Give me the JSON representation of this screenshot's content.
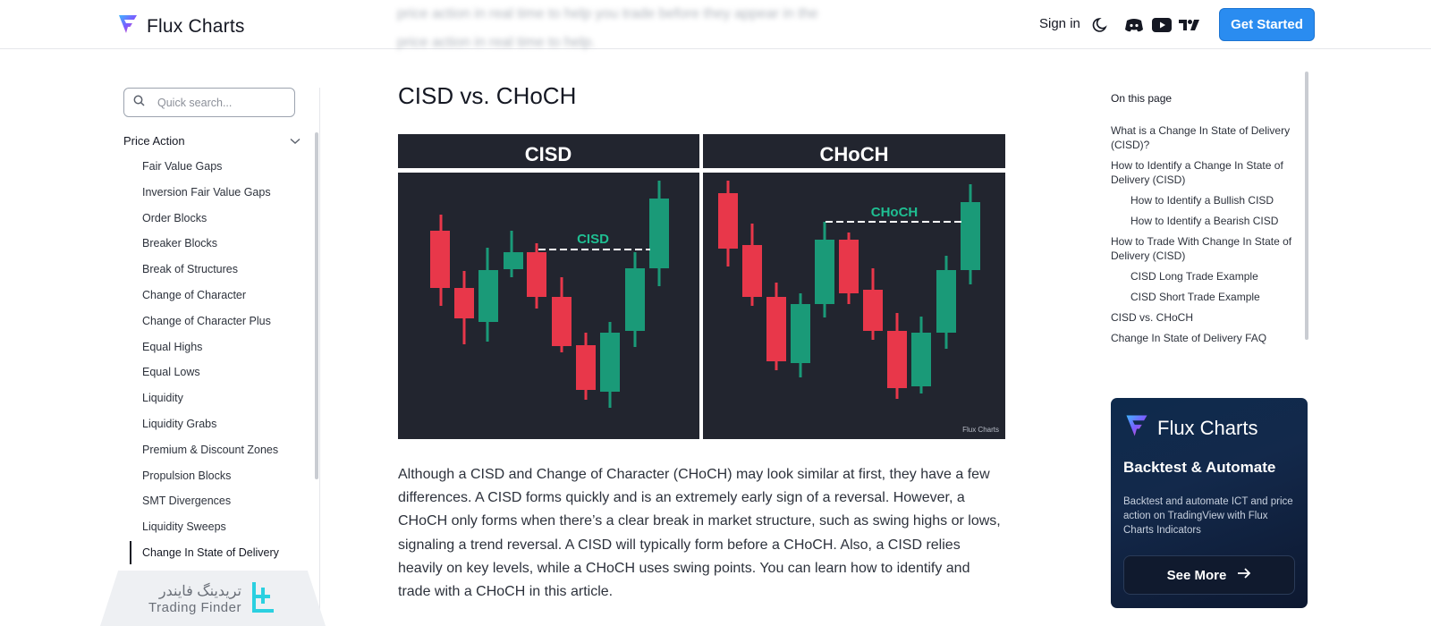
{
  "header": {
    "brand": "Flux Charts",
    "blurred_text_line1": "price action in real time to help you trade before they appear in the",
    "blurred_text_line2": "price action in real time to help.",
    "sign_in": "Sign in",
    "icons": [
      "moon-icon",
      "discord-icon",
      "youtube-icon",
      "tradingview-icon"
    ],
    "cta": "Get Started",
    "accent": "#2a8cf0"
  },
  "sidebar": {
    "search_placeholder": "Quick search...",
    "section": "Price Action",
    "items": [
      "Fair Value Gaps",
      "Inversion Fair Value Gaps",
      "Order Blocks",
      "Breaker Blocks",
      "Break of Structures",
      "Change of Character",
      "Change of Character Plus",
      "Equal Highs",
      "Equal Lows",
      "Liquidity",
      "Liquidity Grabs",
      "Premium & Discount Zones",
      "Propulsion Blocks",
      "SMT Divergences",
      "Liquidity Sweeps",
      "Change In State of Delivery"
    ],
    "active_item": "Change In State of Delivery"
  },
  "watermark": {
    "persian": "تریدینگ فایندر",
    "english": "Trading Finder"
  },
  "main": {
    "heading": "CISD vs. CHoCH",
    "figure": {
      "left_title": "CISD",
      "right_title": "CHoCH",
      "left_label": "CISD",
      "right_label": "CHoCH",
      "credit": "Flux Charts",
      "bull_color": "#1a9a78",
      "bear_color": "#e8374a",
      "bg_color": "#22252f"
    },
    "paragraph": "Although a CISD and Change of Character (CHoCH) may look similar at first, they have a few differences. A CISD forms quickly and is an extremely early sign of a reversal. However, a CHoCH only forms when there’s a clear break in market structure, such as swing highs or lows, signaling a trend reversal. A CISD will typically form before a CHoCH. Also, a CISD relies heavily on key levels, while a CHoCH uses swing points. You can learn how to identify and trade with a CHoCH in this article."
  },
  "toc": {
    "title": "On this page",
    "items": [
      {
        "label": "What is a Change In State of Delivery (CISD)?",
        "sub": false
      },
      {
        "label": "How to Identify a Change In State of Delivery (CISD)",
        "sub": false
      },
      {
        "label": "How to Identify a Bullish CISD",
        "sub": true
      },
      {
        "label": "How to Identify a Bearish CISD",
        "sub": true
      },
      {
        "label": "How to Trade With Change In State of Delivery (CISD)",
        "sub": false
      },
      {
        "label": "CISD Long Trade Example",
        "sub": true
      },
      {
        "label": "CISD Short Trade Example",
        "sub": true
      },
      {
        "label": "CISD vs. CHoCH",
        "sub": false
      },
      {
        "label": "Change In State of Delivery FAQ",
        "sub": false
      }
    ]
  },
  "promo": {
    "brand": "Flux Charts",
    "title": "Backtest & Automate",
    "description": "Backtest and automate ICT and price action on TradingView with Flux Charts Indicators",
    "button": "See More"
  }
}
